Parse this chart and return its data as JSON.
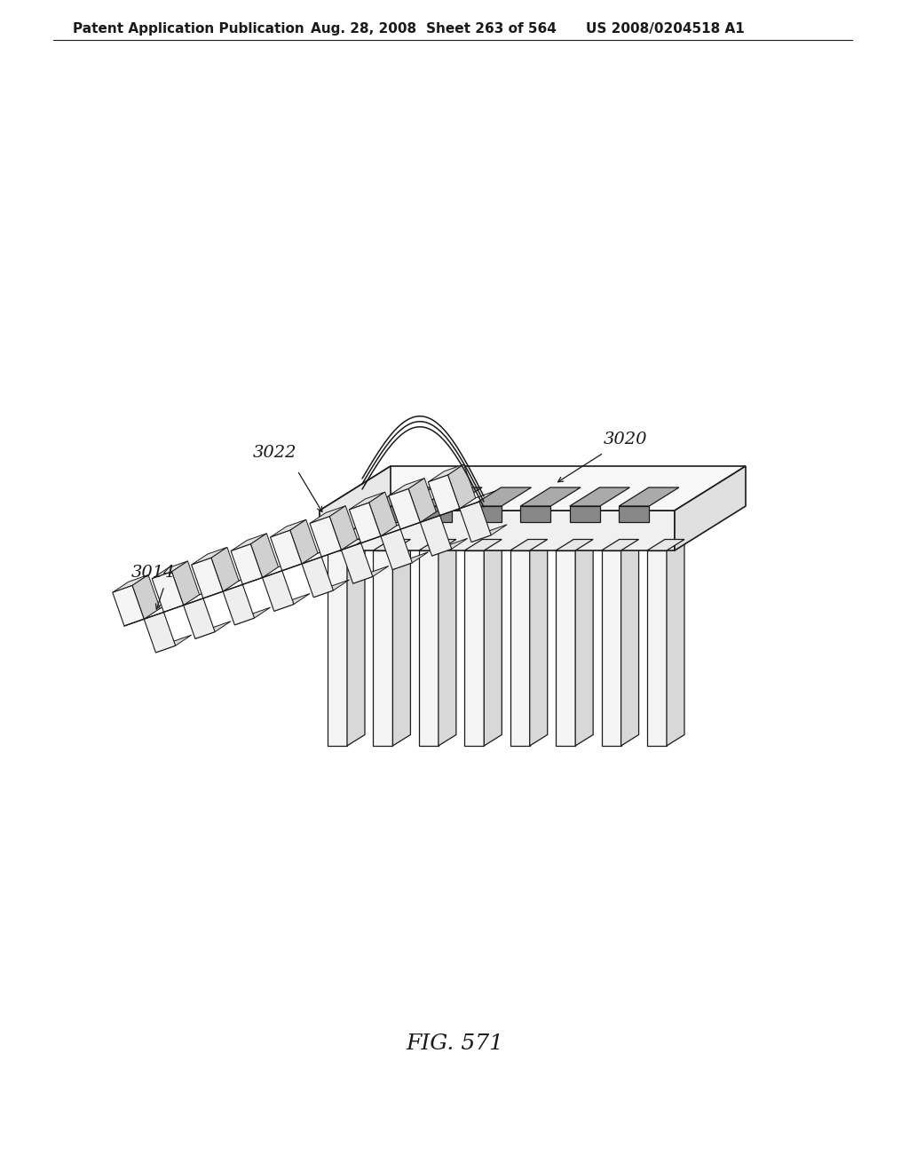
{
  "background_color": "#ffffff",
  "header_text": "Patent Application Publication",
  "header_date": "Aug. 28, 2008",
  "header_sheet": "Sheet 263 of 564",
  "header_patent": "US 2008/0204518 A1",
  "fig_caption": "FIG. 571",
  "label_3014": "3014",
  "label_3022": "3022",
  "label_3020": "3020",
  "line_color": "#1a1a1a",
  "line_width": 1.2,
  "header_fontsize": 11,
  "caption_fontsize": 18,
  "label_fontsize": 14,
  "page_width": 10.24,
  "page_height": 13.2
}
